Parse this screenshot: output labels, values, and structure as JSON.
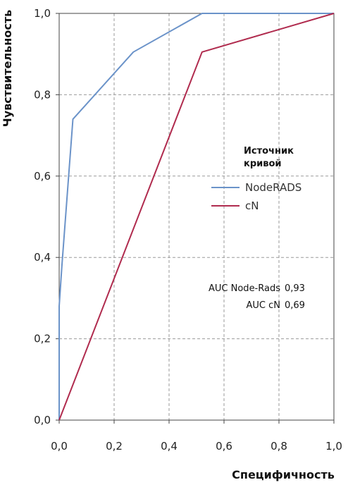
{
  "chart_data": {
    "type": "line",
    "xlabel": "Специфичность",
    "ylabel": "Чувствительность",
    "xlim": [
      0,
      1
    ],
    "ylim": [
      0,
      1
    ],
    "x_ticks": [
      "0,0",
      "0,2",
      "0,4",
      "0,6",
      "0,8",
      "1,0"
    ],
    "y_ticks": [
      "0,0",
      "0,2",
      "0,4",
      "0,6",
      "0,8",
      "1,0"
    ],
    "grid": true,
    "legend": {
      "title_line1": "Источник",
      "title_line2": "кривой",
      "placement": "right-middle"
    },
    "series": [
      {
        "name": "NodeRADS",
        "color": "#6b93c9",
        "points": [
          [
            0.0,
            0.0
          ],
          [
            0.0,
            0.28
          ],
          [
            0.01,
            0.38
          ],
          [
            0.05,
            0.74
          ],
          [
            0.27,
            0.905
          ],
          [
            0.52,
            1.0
          ],
          [
            1.0,
            1.0
          ]
        ]
      },
      {
        "name": "cN",
        "color": "#b02b4e",
        "points": [
          [
            0.0,
            0.0
          ],
          [
            0.52,
            0.905
          ],
          [
            1.0,
            1.0
          ]
        ]
      }
    ],
    "annotations": [
      {
        "label": "AUC Node-Rads",
        "value": "0,93"
      },
      {
        "label": "AUC cN",
        "value": "0,69"
      }
    ]
  }
}
